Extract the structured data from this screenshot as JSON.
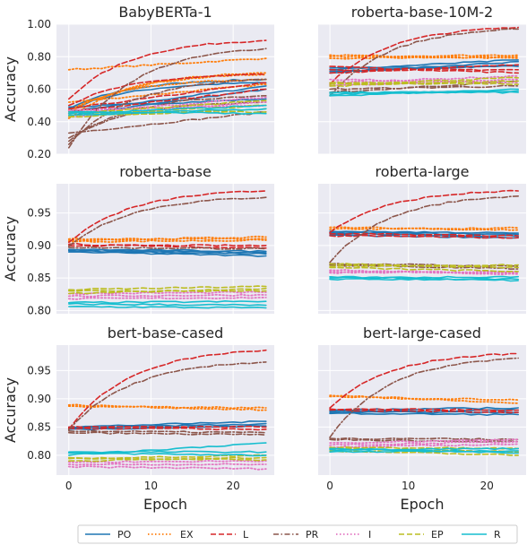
{
  "chart_data": [
    {
      "type": "line",
      "title": "BabyBERTa-1",
      "ylabel": "Accuracy",
      "xlabel": "",
      "xlim": [
        -1.5,
        25
      ],
      "ylim": [
        0.2,
        1.0
      ],
      "yticks": [
        "0.20",
        "0.40",
        "0.60",
        "0.80",
        "1.00"
      ],
      "xticks": [],
      "series": [
        {
          "name": "PO",
          "start": [
            0.44,
            0.46,
            0.47,
            0.48,
            0.49
          ],
          "end": [
            0.6,
            0.62,
            0.64,
            0.66,
            0.54
          ]
        },
        {
          "name": "EX",
          "start": [
            0.72,
            0.42,
            0.47,
            0.52,
            0.45
          ],
          "end": [
            0.79,
            0.7,
            0.66,
            0.63,
            0.69
          ]
        },
        {
          "name": "L",
          "start": [
            0.54,
            0.5,
            0.48,
            0.46
          ],
          "end": [
            0.9,
            0.69,
            0.64,
            0.6
          ]
        },
        {
          "name": "PR",
          "start": [
            0.24,
            0.26,
            0.28,
            0.3,
            0.33
          ],
          "end": [
            0.85,
            0.66,
            0.56,
            0.52,
            0.46
          ]
        },
        {
          "name": "I",
          "start": [
            0.43,
            0.45,
            0.47
          ],
          "end": [
            0.52,
            0.55,
            0.5
          ]
        },
        {
          "name": "EP",
          "start": [
            0.43,
            0.44,
            0.45,
            0.46
          ],
          "end": [
            0.48,
            0.5,
            0.53,
            0.46
          ]
        },
        {
          "name": "R",
          "start": [
            0.44,
            0.45,
            0.46
          ],
          "end": [
            0.48,
            0.5,
            0.45
          ]
        }
      ]
    },
    {
      "type": "line",
      "title": "roberta-base-10M-2",
      "ylabel": "",
      "xlabel": "",
      "xlim": [
        -1.5,
        25
      ],
      "ylim": [
        0.2,
        1.0
      ],
      "yticks": [],
      "xticks": [],
      "series": [
        {
          "name": "PO",
          "start": [
            0.7,
            0.71,
            0.72,
            0.73
          ],
          "end": [
            0.77,
            0.75,
            0.78,
            0.74
          ]
        },
        {
          "name": "EX",
          "start": [
            0.8,
            0.79,
            0.81
          ],
          "end": [
            0.81,
            0.8,
            0.79
          ]
        },
        {
          "name": "L",
          "start": [
            0.63,
            0.7,
            0.72,
            0.74
          ],
          "end": [
            0.98,
            0.75,
            0.72,
            0.7
          ]
        },
        {
          "name": "PR",
          "start": [
            0.56,
            0.58,
            0.6
          ],
          "end": [
            0.97,
            0.65,
            0.62
          ]
        },
        {
          "name": "I",
          "start": [
            0.62,
            0.64,
            0.66
          ],
          "end": [
            0.66,
            0.68,
            0.64
          ]
        },
        {
          "name": "EP",
          "start": [
            0.62,
            0.63,
            0.64
          ],
          "end": [
            0.65,
            0.67,
            0.63
          ]
        },
        {
          "name": "R",
          "start": [
            0.56,
            0.57,
            0.58
          ],
          "end": [
            0.6,
            0.59,
            0.58
          ]
        }
      ]
    },
    {
      "type": "line",
      "title": "roberta-base",
      "ylabel": "Accuracy",
      "xlabel": "",
      "xlim": [
        -1.5,
        25
      ],
      "ylim": [
        0.795,
        0.995
      ],
      "yticks": [
        "0.80",
        "0.85",
        "0.90",
        "0.95"
      ],
      "xticks": [],
      "series": [
        {
          "name": "PO",
          "start": [
            0.89,
            0.892,
            0.893,
            0.894
          ],
          "end": [
            0.884,
            0.887,
            0.889,
            0.891
          ]
        },
        {
          "name": "EX",
          "start": [
            0.908,
            0.91,
            0.906
          ],
          "end": [
            0.913,
            0.91,
            0.908
          ]
        },
        {
          "name": "L",
          "start": [
            0.905,
            0.9,
            0.902
          ],
          "end": [
            0.984,
            0.9,
            0.896
          ]
        },
        {
          "name": "PR",
          "start": [
            0.899,
            0.897
          ],
          "end": [
            0.974,
            0.895
          ]
        },
        {
          "name": "I",
          "start": [
            0.818,
            0.822,
            0.826
          ],
          "end": [
            0.82,
            0.824,
            0.828
          ]
        },
        {
          "name": "EP",
          "start": [
            0.826,
            0.83,
            0.832
          ],
          "end": [
            0.834,
            0.83,
            0.837
          ]
        },
        {
          "name": "R",
          "start": [
            0.806,
            0.81,
            0.812
          ],
          "end": [
            0.804,
            0.808,
            0.814
          ]
        }
      ]
    },
    {
      "type": "line",
      "title": "roberta-large",
      "ylabel": "",
      "xlabel": "",
      "xlim": [
        -1.5,
        25
      ],
      "ylim": [
        0.795,
        0.995
      ],
      "yticks": [],
      "xticks": [],
      "series": [
        {
          "name": "PO",
          "start": [
            0.916,
            0.918,
            0.92,
            0.922
          ],
          "end": [
            0.912,
            0.914,
            0.917,
            0.919
          ]
        },
        {
          "name": "EX",
          "start": [
            0.925,
            0.928
          ],
          "end": [
            0.927,
            0.924
          ]
        },
        {
          "name": "L",
          "start": [
            0.92,
            0.918,
            0.915
          ],
          "end": [
            0.984,
            0.915,
            0.912
          ]
        },
        {
          "name": "PR",
          "start": [
            0.874,
            0.872,
            0.87
          ],
          "end": [
            0.976,
            0.868,
            0.864
          ]
        },
        {
          "name": "I",
          "start": [
            0.858,
            0.86,
            0.862
          ],
          "end": [
            0.86,
            0.858,
            0.856
          ]
        },
        {
          "name": "EP",
          "start": [
            0.868,
            0.872,
            0.866
          ],
          "end": [
            0.87,
            0.866,
            0.86
          ]
        },
        {
          "name": "R",
          "start": [
            0.848,
            0.85,
            0.852
          ],
          "end": [
            0.848,
            0.852,
            0.846
          ]
        }
      ]
    },
    {
      "type": "line",
      "title": "bert-base-cased",
      "ylabel": "Accuracy",
      "xlabel": "Epoch",
      "xlim": [
        -1.5,
        25
      ],
      "ylim": [
        0.765,
        0.995
      ],
      "yticks": [
        "0.80",
        "0.85",
        "0.90",
        "0.95"
      ],
      "xticks": [
        "0",
        "10",
        "20"
      ],
      "series": [
        {
          "name": "PO",
          "start": [
            0.846,
            0.848,
            0.85
          ],
          "end": [
            0.852,
            0.856,
            0.86
          ]
        },
        {
          "name": "EX",
          "start": [
            0.887,
            0.889
          ],
          "end": [
            0.884,
            0.88
          ]
        },
        {
          "name": "L",
          "start": [
            0.846,
            0.85,
            0.848
          ],
          "end": [
            0.986,
            0.85,
            0.846
          ]
        },
        {
          "name": "PR",
          "start": [
            0.845,
            0.843,
            0.84
          ],
          "end": [
            0.965,
            0.84,
            0.836
          ]
        },
        {
          "name": "I",
          "start": [
            0.78,
            0.784,
            0.788
          ],
          "end": [
            0.776,
            0.784,
            0.79
          ]
        },
        {
          "name": "EP",
          "start": [
            0.79,
            0.794,
            0.796
          ],
          "end": [
            0.796,
            0.8,
            0.792
          ]
        },
        {
          "name": "R",
          "start": [
            0.8,
            0.804,
            0.806
          ],
          "end": [
            0.822,
            0.8,
            0.806
          ]
        }
      ]
    },
    {
      "type": "line",
      "title": "bert-large-cased",
      "ylabel": "",
      "xlabel": "Epoch",
      "xlim": [
        -1.5,
        25
      ],
      "ylim": [
        0.765,
        0.995
      ],
      "yticks": [],
      "xticks": [
        "0",
        "10",
        "20"
      ],
      "series": [
        {
          "name": "PO",
          "start": [
            0.874,
            0.876,
            0.878,
            0.88
          ],
          "end": [
            0.872,
            0.876,
            0.88,
            0.884
          ]
        },
        {
          "name": "EX",
          "start": [
            0.904,
            0.906
          ],
          "end": [
            0.898,
            0.892
          ]
        },
        {
          "name": "L",
          "start": [
            0.884,
            0.882,
            0.88
          ],
          "end": [
            0.98,
            0.88,
            0.876
          ]
        },
        {
          "name": "PR",
          "start": [
            0.832,
            0.83,
            0.828
          ],
          "end": [
            0.972,
            0.828,
            0.824
          ]
        },
        {
          "name": "I",
          "start": [
            0.814,
            0.818,
            0.822
          ],
          "end": [
            0.82,
            0.824,
            0.828
          ]
        },
        {
          "name": "EP",
          "start": [
            0.808,
            0.812,
            0.814
          ],
          "end": [
            0.8,
            0.806,
            0.812
          ]
        },
        {
          "name": "R",
          "start": [
            0.806,
            0.81,
            0.812
          ],
          "end": [
            0.808,
            0.812,
            0.804
          ]
        }
      ]
    }
  ],
  "legend": {
    "placement": "bottom",
    "entries": [
      {
        "label": "PO",
        "color": "#1f77b4",
        "style": "solid"
      },
      {
        "label": "EX",
        "color": "#ff7f0e",
        "style": "dotted"
      },
      {
        "label": "L",
        "color": "#d62728",
        "style": "dashed"
      },
      {
        "label": "PR",
        "color": "#8c564b",
        "style": "dashdot"
      },
      {
        "label": "I",
        "color": "#e377c2",
        "style": "dotted"
      },
      {
        "label": "EP",
        "color": "#bcbd22",
        "style": "dashed"
      },
      {
        "label": "R",
        "color": "#17becf",
        "style": "solid"
      }
    ]
  },
  "grid": true,
  "background": "#eaeaf2"
}
